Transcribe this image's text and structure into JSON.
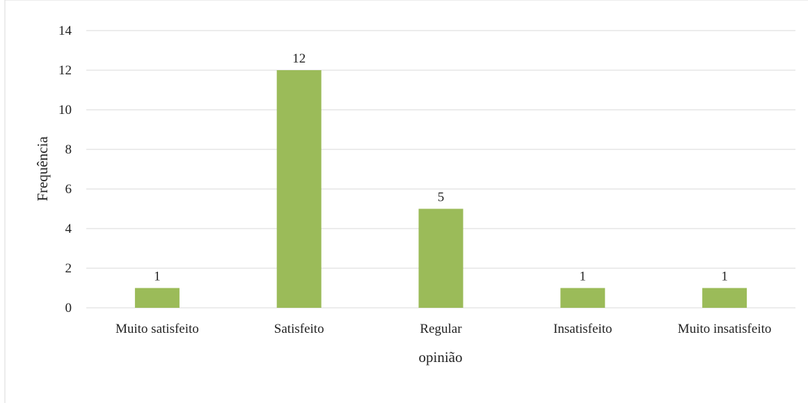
{
  "chart_data": {
    "type": "bar",
    "categories": [
      "Muito satisfeito",
      "Satisfeito",
      "Regular",
      "Insatisfeito",
      "Muito insatisfeito"
    ],
    "values": [
      1,
      12,
      5,
      1,
      1
    ],
    "data_labels": [
      "1",
      "12",
      "5",
      "1",
      "1"
    ],
    "title": "",
    "xlabel": "opinião",
    "ylabel": "Frequência",
    "ylim": [
      0,
      14
    ],
    "yticks": [
      0,
      2,
      4,
      6,
      8,
      10,
      12,
      14
    ],
    "grid": true,
    "legend": "none",
    "bar_color": "#9bbb59"
  }
}
